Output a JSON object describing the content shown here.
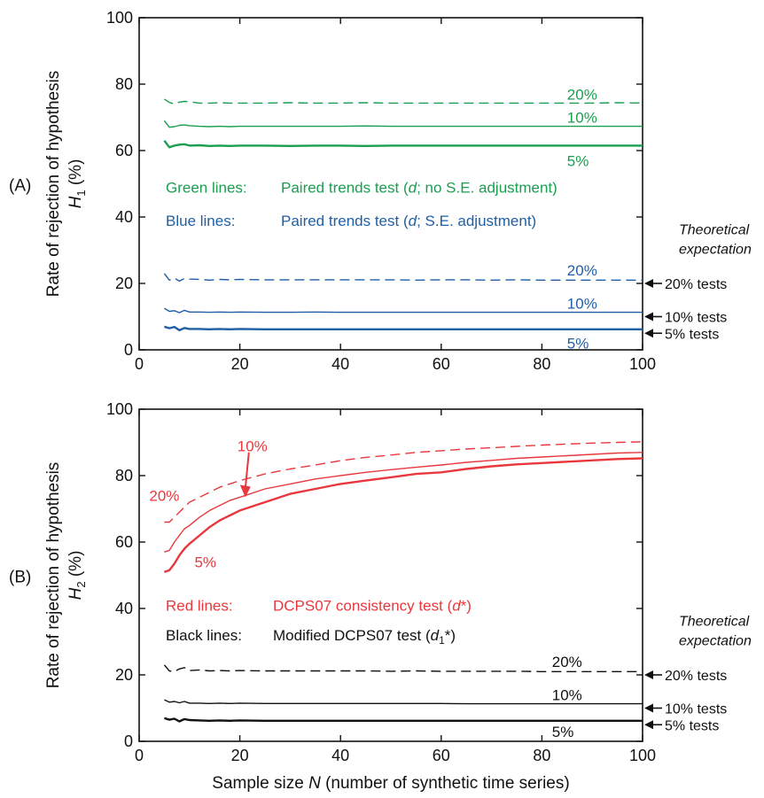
{
  "chart_data": [
    {
      "type": "line",
      "panel_label": "(A)",
      "ylabel": [
        "Rate of rejection of hypothesis",
        "H",
        "1",
        "(%)"
      ],
      "xlim": [
        0,
        100
      ],
      "ylim": [
        0,
        100
      ],
      "xticks": [
        0,
        20,
        40,
        60,
        80,
        100
      ],
      "yticks": [
        0,
        20,
        40,
        60,
        80,
        100
      ],
      "x": [
        5,
        6,
        7,
        8,
        9,
        10,
        12,
        14,
        16,
        18,
        20,
        25,
        30,
        35,
        40,
        45,
        50,
        55,
        60,
        65,
        70,
        75,
        80,
        85,
        90,
        95,
        100
      ],
      "series": [
        {
          "color": "#1a9e4f",
          "dash": true,
          "width": 1.4,
          "values": [
            75.5,
            74.5,
            74.0,
            74.6,
            74.8,
            74.7,
            74.3,
            74.3,
            74.4,
            74.3,
            74.3,
            74.3,
            74.4,
            74.3,
            74.3,
            74.4,
            74.3,
            74.3,
            74.3,
            74.3,
            74.3,
            74.3,
            74.3,
            74.3,
            74.3,
            74.4,
            74.3
          ]
        },
        {
          "color": "#1a9e4f",
          "dash": false,
          "width": 1.4,
          "values": [
            69.0,
            67.0,
            67.2,
            67.6,
            67.7,
            67.5,
            67.3,
            67.2,
            67.3,
            67.2,
            67.3,
            67.3,
            67.3,
            67.3,
            67.3,
            67.4,
            67.3,
            67.3,
            67.3,
            67.3,
            67.3,
            67.3,
            67.3,
            67.3,
            67.3,
            67.3,
            67.3
          ]
        },
        {
          "color": "#1a9e4f",
          "dash": false,
          "width": 2.4,
          "values": [
            63.0,
            61.0,
            61.5,
            61.8,
            61.9,
            61.5,
            61.6,
            61.4,
            61.5,
            61.4,
            61.5,
            61.5,
            61.4,
            61.5,
            61.5,
            61.4,
            61.5,
            61.5,
            61.5,
            61.5,
            61.5,
            61.5,
            61.5,
            61.5,
            61.5,
            61.5,
            61.5
          ]
        },
        {
          "color": "#1f5fa6",
          "dash": true,
          "width": 1.4,
          "values": [
            23.0,
            21.0,
            21.6,
            20.7,
            21.5,
            21.3,
            21.2,
            21.0,
            21.2,
            21.1,
            21.2,
            21.1,
            21.1,
            21.1,
            21.1,
            21.1,
            21.1,
            21.0,
            21.1,
            21.1,
            21.0,
            21.1,
            21.0,
            21.0,
            21.0,
            21.0,
            21.0
          ]
        },
        {
          "color": "#1f5fa6",
          "dash": false,
          "width": 1.4,
          "values": [
            12.5,
            11.6,
            11.8,
            11.2,
            11.9,
            11.4,
            11.4,
            11.3,
            11.4,
            11.3,
            11.4,
            11.3,
            11.3,
            11.4,
            11.3,
            11.3,
            11.3,
            11.3,
            11.3,
            11.3,
            11.3,
            11.3,
            11.3,
            11.3,
            11.3,
            11.3,
            11.3
          ]
        },
        {
          "color": "#1f5fa6",
          "dash": false,
          "width": 2.4,
          "values": [
            7.0,
            6.5,
            6.9,
            5.9,
            6.6,
            6.3,
            6.3,
            6.2,
            6.3,
            6.2,
            6.3,
            6.2,
            6.2,
            6.2,
            6.2,
            6.2,
            6.2,
            6.2,
            6.2,
            6.2,
            6.2,
            6.2,
            6.2,
            6.2,
            6.2,
            6.2,
            6.2
          ]
        }
      ],
      "labels": [
        {
          "text": "20%",
          "x": 85,
          "y": 77,
          "color": "#1a9e4f"
        },
        {
          "text": "10%",
          "x": 85,
          "y": 70,
          "color": "#1a9e4f"
        },
        {
          "text": "5%",
          "x": 85,
          "y": 57,
          "color": "#1a9e4f"
        },
        {
          "text": "20%",
          "x": 85,
          "y": 24,
          "color": "#1f5fa6"
        },
        {
          "text": "10%",
          "x": 85,
          "y": 14,
          "color": "#1f5fa6"
        },
        {
          "text": "5%",
          "x": 85,
          "y": 2,
          "color": "#1f5fa6"
        }
      ],
      "legend": [
        {
          "color": "#1a9e4f",
          "y": 49,
          "parts": [
            "Green lines:",
            "Paired trends test (",
            "d",
            "; no S.E. adjustment)"
          ]
        },
        {
          "color": "#1f5fa6",
          "y": 39,
          "parts": [
            "Blue lines:",
            "Paired trends test (",
            "d",
            "; S.E. adjustment)"
          ]
        }
      ],
      "theory_title": [
        "Theoretical",
        "expectation"
      ],
      "theory": [
        {
          "y": 20,
          "label": "20% tests"
        },
        {
          "y": 10,
          "label": "10% tests"
        },
        {
          "y": 5,
          "label": "5% tests"
        }
      ]
    },
    {
      "type": "line",
      "panel_label": "(B)",
      "ylabel": [
        "Rate of rejection of hypothesis",
        "H",
        "2",
        "(%)"
      ],
      "xlabel": [
        "Sample size ",
        "N",
        " (number of synthetic time series)"
      ],
      "xlim": [
        0,
        100
      ],
      "ylim": [
        0,
        100
      ],
      "xticks": [
        0,
        20,
        40,
        60,
        80,
        100
      ],
      "yticks": [
        0,
        20,
        40,
        60,
        80,
        100
      ],
      "x": [
        5,
        6,
        7,
        8,
        9,
        10,
        12,
        14,
        16,
        18,
        20,
        25,
        30,
        35,
        40,
        45,
        50,
        55,
        60,
        65,
        70,
        75,
        80,
        85,
        90,
        95,
        100
      ],
      "series": [
        {
          "color": "#e8383d",
          "dash": true,
          "width": 1.4,
          "values": [
            66.0,
            66.0,
            67.5,
            69.0,
            70.5,
            72.0,
            73.5,
            75.0,
            76.5,
            77.5,
            78.5,
            80.5,
            82.0,
            83.2,
            84.5,
            85.5,
            86.2,
            87.0,
            87.5,
            88.0,
            88.4,
            88.8,
            89.2,
            89.5,
            89.8,
            90.0,
            90.2
          ]
        },
        {
          "color": "#e8383d",
          "dash": false,
          "width": 1.4,
          "values": [
            57.0,
            57.5,
            60.0,
            62.0,
            64.0,
            65.0,
            67.5,
            69.5,
            71.0,
            72.5,
            73.5,
            76.0,
            77.5,
            79.0,
            80.0,
            81.0,
            81.8,
            82.5,
            83.2,
            84.0,
            84.6,
            85.2,
            85.6,
            86.0,
            86.4,
            86.8,
            87.0
          ]
        },
        {
          "color": "#e8383d",
          "dash": false,
          "width": 2.4,
          "values": [
            51.0,
            51.5,
            53.5,
            56.0,
            58.0,
            59.5,
            62.0,
            64.5,
            66.5,
            68.0,
            69.5,
            72.0,
            74.5,
            76.0,
            77.5,
            78.5,
            79.5,
            80.5,
            81.0,
            82.0,
            82.8,
            83.4,
            83.8,
            84.2,
            84.6,
            85.0,
            85.2
          ]
        },
        {
          "color": "#111111",
          "dash": true,
          "width": 1.4,
          "values": [
            23.0,
            21.2,
            21.0,
            21.8,
            22.2,
            21.3,
            21.5,
            21.2,
            21.3,
            21.2,
            21.3,
            21.2,
            21.2,
            21.2,
            21.2,
            21.2,
            21.1,
            21.2,
            21.1,
            21.1,
            21.1,
            21.1,
            21.0,
            21.0,
            21.0,
            21.0,
            21.0
          ]
        },
        {
          "color": "#111111",
          "dash": false,
          "width": 1.4,
          "values": [
            12.5,
            11.8,
            12.0,
            11.6,
            12.0,
            11.5,
            11.5,
            11.4,
            11.5,
            11.4,
            11.5,
            11.4,
            11.4,
            11.4,
            11.4,
            11.4,
            11.4,
            11.4,
            11.4,
            11.3,
            11.3,
            11.3,
            11.3,
            11.3,
            11.3,
            11.3,
            11.3
          ]
        },
        {
          "color": "#111111",
          "dash": false,
          "width": 2.4,
          "values": [
            7.0,
            6.5,
            6.8,
            6.0,
            6.7,
            6.4,
            6.3,
            6.2,
            6.3,
            6.2,
            6.3,
            6.2,
            6.2,
            6.2,
            6.2,
            6.2,
            6.2,
            6.2,
            6.2,
            6.2,
            6.2,
            6.2,
            6.2,
            6.2,
            6.2,
            6.2,
            6.2
          ]
        }
      ],
      "labels": [
        {
          "text": "10%",
          "x": 19.5,
          "y": 89,
          "color": "#e8383d"
        },
        {
          "text": "20%",
          "x": 2,
          "y": 74,
          "color": "#e8383d"
        },
        {
          "text": "5%",
          "x": 11,
          "y": 54,
          "color": "#e8383d"
        },
        {
          "text": "20%",
          "x": 82,
          "y": 24,
          "color": "#111111"
        },
        {
          "text": "10%",
          "x": 82,
          "y": 14,
          "color": "#111111"
        },
        {
          "text": "5%",
          "x": 82,
          "y": 3,
          "color": "#111111"
        }
      ],
      "arrow": {
        "from": [
          22.5,
          87
        ],
        "to": [
          22.5,
          74
        ],
        "color": "#e8383d"
      },
      "legend": [
        {
          "color": "#e8383d",
          "y": 41,
          "parts": [
            "Red lines:",
            "DCPS07 consistency test (",
            "d",
            "*)"
          ]
        },
        {
          "color": "#111111",
          "y": 32,
          "parts": [
            "Black lines:",
            "Modified DCPS07 test (",
            "d",
            "1",
            "*)"
          ]
        }
      ],
      "theory_title": [
        "Theoretical",
        "expectation"
      ],
      "theory": [
        {
          "y": 20,
          "label": "20% tests"
        },
        {
          "y": 10,
          "label": "10% tests"
        },
        {
          "y": 5,
          "label": "5% tests"
        }
      ]
    }
  ]
}
